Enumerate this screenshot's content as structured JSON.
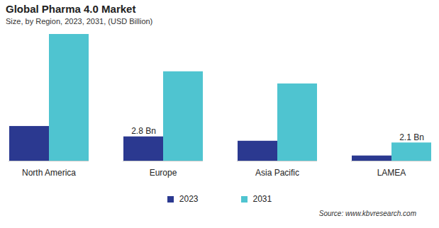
{
  "chart_data": {
    "type": "bar",
    "title": "Global Pharma 4.0 Market",
    "subtitle": "Size, by Region, 2023, 2031, (USD Billion)",
    "source": "Source: www.kbvresearch.com",
    "categories": [
      "North America",
      "Europe",
      "Asia Pacific",
      "LAMEA"
    ],
    "series": [
      {
        "name": "2023",
        "color": "#2b3990",
        "values": [
          4.0,
          2.8,
          2.3,
          0.6
        ],
        "value_labels": [
          null,
          "2.8 Bn",
          null,
          null
        ]
      },
      {
        "name": "2031",
        "color": "#4fc4d0",
        "values": [
          14.6,
          10.3,
          8.9,
          2.1
        ],
        "value_labels": [
          null,
          null,
          null,
          "2.1 Bn"
        ]
      }
    ],
    "data_labels": true,
    "tick_labels": "x",
    "legend": "bottom"
  }
}
